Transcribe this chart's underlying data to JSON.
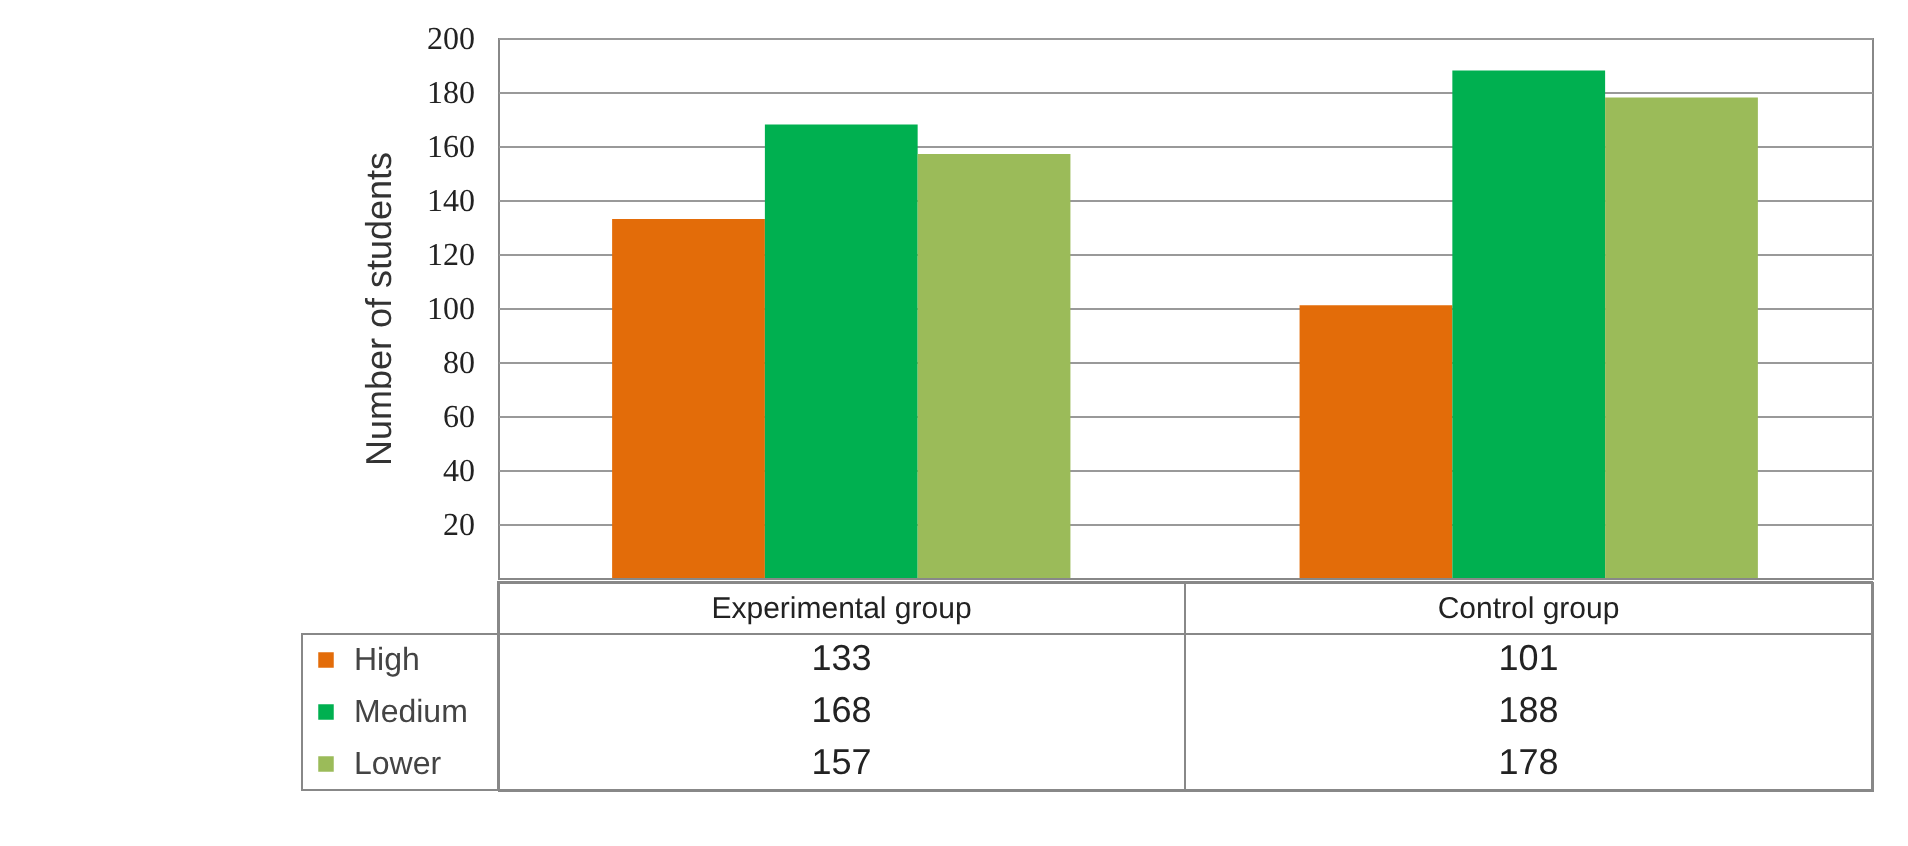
{
  "chart_data": {
    "type": "bar",
    "ylabel": "Number of students",
    "categories": [
      "Experimental group",
      "Control group"
    ],
    "series": [
      {
        "name": "High",
        "color": "#e36c09",
        "values": [
          133,
          101
        ]
      },
      {
        "name": "Medium",
        "color": "#00b050",
        "values": [
          168,
          188
        ]
      },
      {
        "name": "Lower",
        "color": "#9bbb59",
        "values": [
          157,
          178
        ]
      }
    ],
    "ylim": [
      0,
      200
    ],
    "yticks": [
      20,
      40,
      60,
      80,
      100,
      120,
      140,
      160,
      180,
      200
    ],
    "grid": "y",
    "legend": "bottom left",
    "data_labels": true
  }
}
